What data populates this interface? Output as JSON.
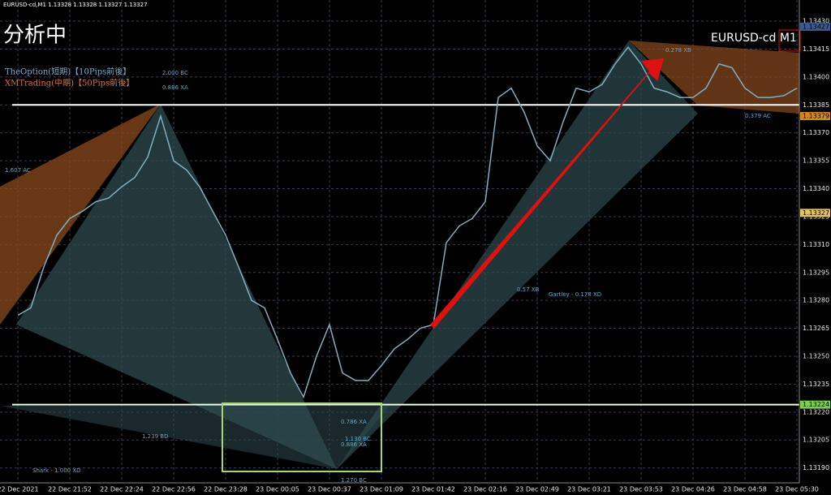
{
  "header": "EURUSD-cd,M1  1.13328 1.13328 1.13327 1.13327",
  "status": "分析中",
  "symbol_label": "EURUSD-cd M1",
  "legend": [
    "TheOption(短期)【10Pips前後】",
    "XMTrading(中期)【50Pips前後】"
  ],
  "chart_data": {
    "type": "line",
    "categories": [
      "22 Dec 2021",
      null,
      null,
      null,
      "22 Dec 21:52",
      null,
      null,
      null,
      "22 Dec 22:24",
      null,
      null,
      null,
      "22 Dec 22:56",
      null,
      null,
      null,
      "22 Dec 23:28",
      null,
      null,
      null,
      "23 Dec 00:05",
      null,
      null,
      null,
      "23 Dec 00:37",
      null,
      null,
      null,
      "23 Dec 01:09",
      null,
      null,
      null,
      "23 Dec 01:42",
      null,
      null,
      null,
      "23 Dec 02:16",
      null,
      null,
      null,
      "23 Dec 02:49",
      null,
      null,
      null,
      "23 Dec 03:21",
      null,
      null,
      null,
      "23 Dec 03:53",
      null,
      null,
      null,
      "23 Dec 04:26",
      null,
      null,
      null,
      "23 Dec 04:58",
      null,
      null,
      null,
      "23 Dec 05:30"
    ],
    "series": [
      {
        "name": "EURUSD-cd",
        "color": "#7fb0c0",
        "values": [
          1.13272,
          1.13276,
          1.13298,
          1.13315,
          1.13324,
          1.13328,
          1.13333,
          1.13335,
          1.13341,
          1.13346,
          1.13357,
          1.13379,
          1.13355,
          1.1335,
          1.13341,
          1.13328,
          1.13315,
          1.13298,
          1.1328,
          1.13276,
          1.13259,
          1.13241,
          1.13228,
          1.1325,
          1.13267,
          1.13241,
          1.13237,
          1.13237,
          1.13245,
          1.13254,
          1.13259,
          1.13265,
          1.13267,
          1.13311,
          1.1332,
          1.13324,
          1.13333,
          1.13389,
          1.13394,
          1.13381,
          1.13363,
          1.13355,
          1.13376,
          1.13394,
          1.13392,
          1.13396,
          1.13407,
          1.13416,
          1.13407,
          1.13394,
          1.13392,
          1.13389,
          1.13389,
          1.13394,
          1.13407,
          1.13405,
          1.13394,
          1.13389,
          1.13389,
          1.1339,
          1.13394
        ]
      }
    ],
    "ylim": [
      1.13182,
      1.13437
    ],
    "yticks": [
      {
        "value": 1.1343,
        "label": "1.13430"
      },
      1.13415,
      {
        "value": 1.134,
        "label": "1.13400"
      },
      1.13385,
      {
        "value": 1.1337,
        "label": "1.13370"
      },
      1.13355,
      {
        "value": 1.1334,
        "label": "1.13340"
      },
      1.13325,
      {
        "value": 1.1331,
        "label": "1.13310"
      },
      1.13295,
      {
        "value": 1.1328,
        "label": "1.13280"
      },
      1.13265,
      {
        "value": 1.1325,
        "label": "1.13250"
      },
      1.13235,
      {
        "value": 1.1322,
        "label": "1.13220"
      },
      1.13205,
      {
        "value": 1.1319,
        "label": "1.13190"
      }
    ],
    "grid": true,
    "levels": [
      1.13385,
      1.13224
    ],
    "price_tags": [
      1.13427,
      1.13379,
      1.13327,
      1.13224
    ],
    "annotations": [
      "2.000 BC",
      "0.886 XA",
      "1.607 AC",
      "1.239 BD",
      "Shark - 1.000 XD",
      "0.786 XA",
      "1.130 BC",
      "0.886 XA",
      "1.270 BC",
      "0.57 XB",
      "Gartley - 0.178 XD",
      "0.278 XB",
      "0.379 AC"
    ]
  }
}
